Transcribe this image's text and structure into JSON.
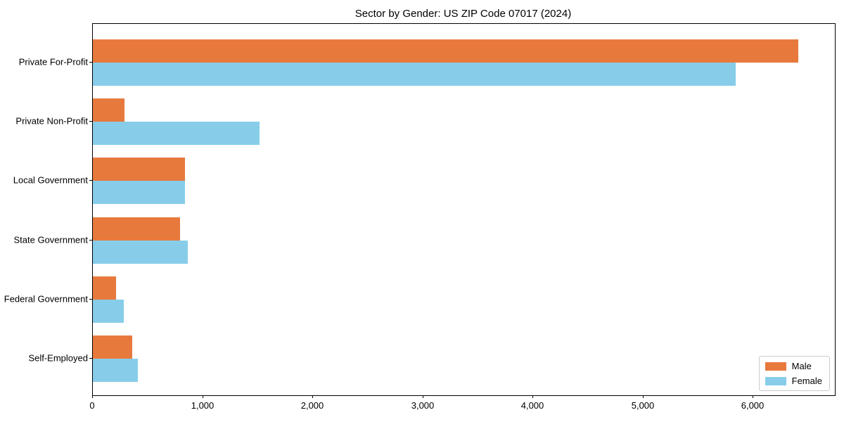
{
  "chart_data": {
    "type": "bar",
    "orientation": "horizontal",
    "title": "Sector by Gender: US ZIP Code 07017 (2024)",
    "categories": [
      "Private For-Profit",
      "Private Non-Profit",
      "Local Government",
      "State Government",
      "Federal Government",
      "Self-Employed"
    ],
    "series": [
      {
        "name": "Male",
        "color": "#E8793D",
        "values": [
          6410,
          290,
          840,
          790,
          210,
          360
        ]
      },
      {
        "name": "Female",
        "color": "#87CDEA",
        "values": [
          5840,
          1515,
          835,
          860,
          280,
          410
        ]
      }
    ],
    "xlabel": "",
    "ylabel": "",
    "xlim": [
      0,
      6740
    ],
    "x_ticks": [
      0,
      1000,
      2000,
      3000,
      4000,
      5000,
      6000
    ],
    "x_tick_labels": [
      "0",
      "1,000",
      "2,000",
      "3,000",
      "4,000",
      "5,000",
      "6,000"
    ],
    "legend_position": "lower right",
    "grid": false
  },
  "colors": {
    "male": "#E8793D",
    "female": "#87CDEA",
    "frame": "#000000",
    "legend_border": "#cccccc",
    "background": "#ffffff",
    "text": "#000000"
  }
}
